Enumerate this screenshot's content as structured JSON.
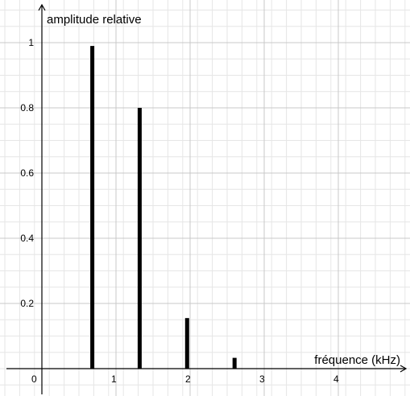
{
  "chart_data": {
    "type": "bar",
    "title": "",
    "xlabel": "fréquence (kHz)",
    "ylabel": "amplitude relative",
    "x": [
      0.68,
      1.32,
      1.96,
      2.6
    ],
    "values": [
      0.99,
      0.8,
      0.155,
      0.033
    ],
    "xlim": [
      -0.5,
      5.0
    ],
    "ylim": [
      -0.1,
      1.1
    ],
    "xticks": [
      {
        "value": 0,
        "label": "0"
      },
      {
        "value": 1,
        "label": "1"
      },
      {
        "value": 2,
        "label": "2"
      },
      {
        "value": 3,
        "label": "3"
      },
      {
        "value": 4,
        "label": "4"
      }
    ],
    "yticks": [
      {
        "value": 1,
        "label": "1"
      },
      {
        "value": 0.8,
        "label": "0.8"
      },
      {
        "value": 0.6,
        "label": "0.6"
      },
      {
        "value": 0.4,
        "label": "0.4"
      },
      {
        "value": 0.2,
        "label": "0.2"
      }
    ],
    "grid": true,
    "colors": {
      "bars": "#000000",
      "axes": "#000000",
      "major_grid": "#c8c8c8",
      "minor_grid": "#e6e6e6"
    }
  }
}
